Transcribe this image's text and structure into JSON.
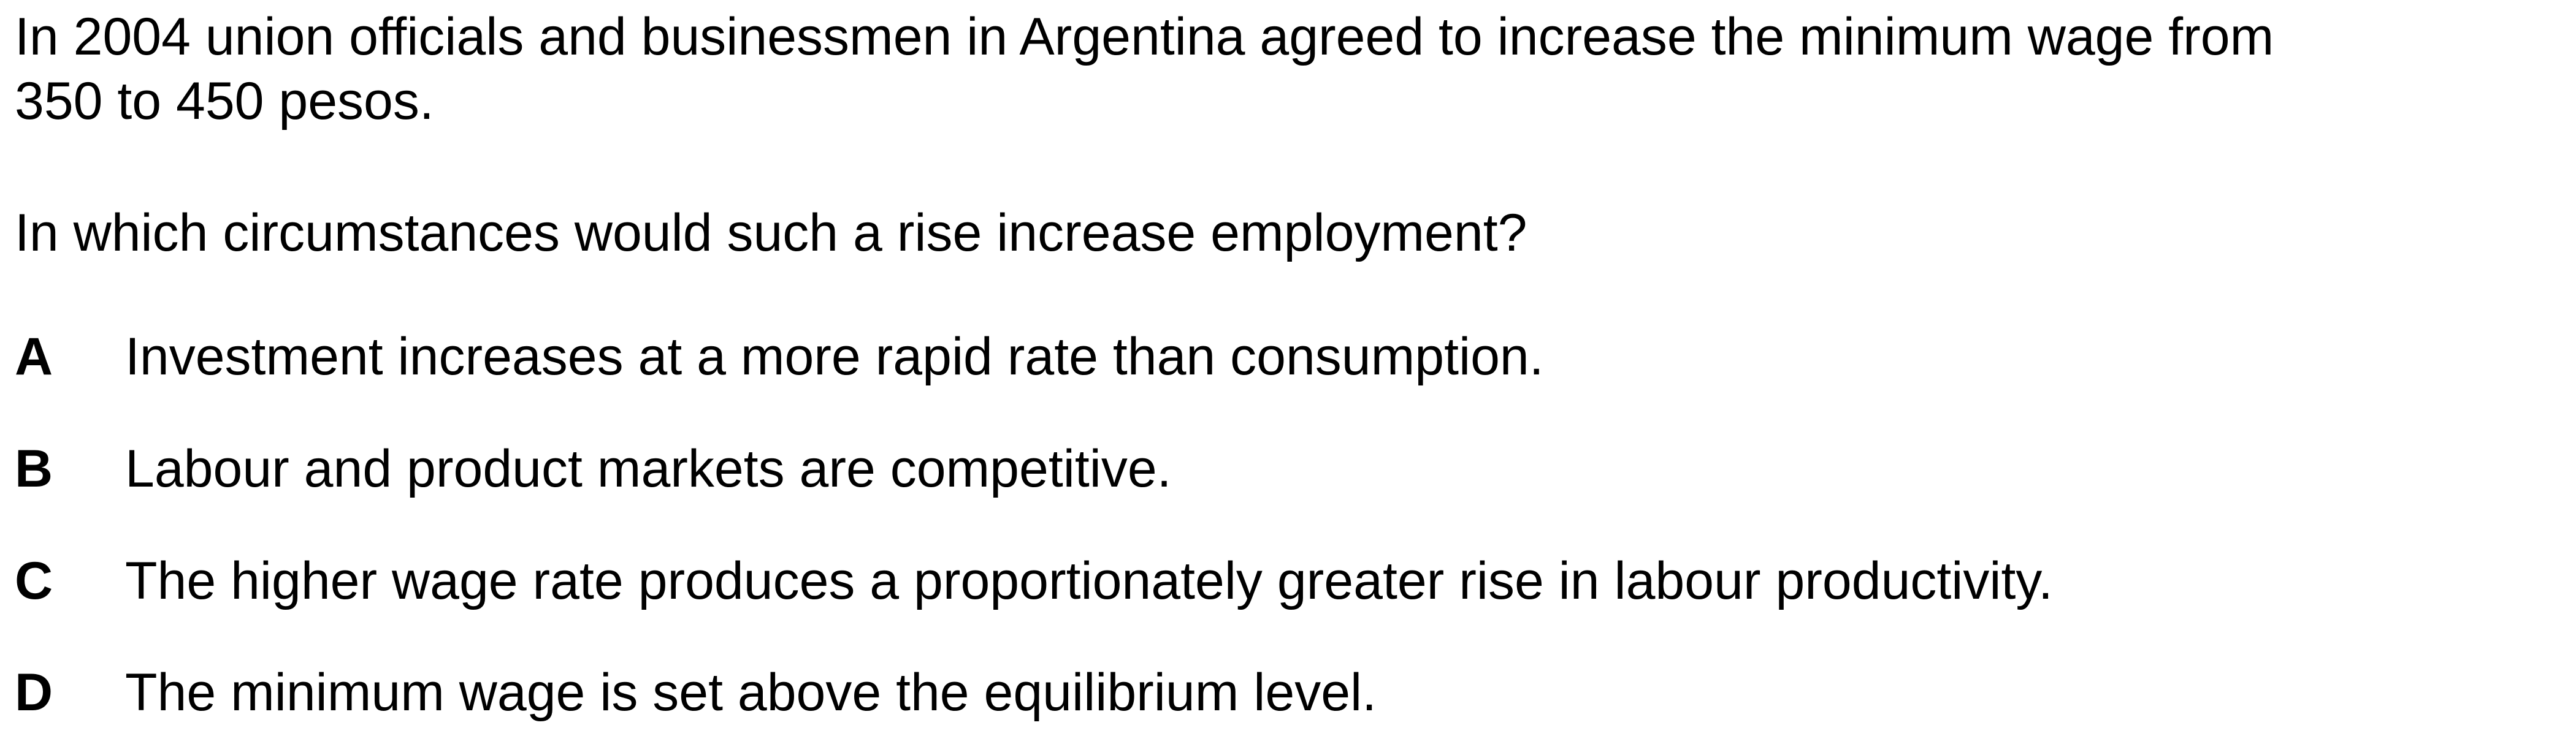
{
  "stem": {
    "line1": "In 2004 union officials and businessmen in Argentina agreed to increase the minimum wage from",
    "line2": "350 to 450 pesos."
  },
  "question": "In which circumstances would such a rise increase employment?",
  "options": [
    {
      "letter": "A",
      "text": "Investment increases at a more rapid rate than consumption."
    },
    {
      "letter": "B",
      "text": "Labour and product markets are competitive."
    },
    {
      "letter": "C",
      "text": "The higher wage rate produces a proportionately greater rise in labour productivity."
    },
    {
      "letter": "D",
      "text": "The minimum wage is set above the equilibrium level."
    }
  ]
}
